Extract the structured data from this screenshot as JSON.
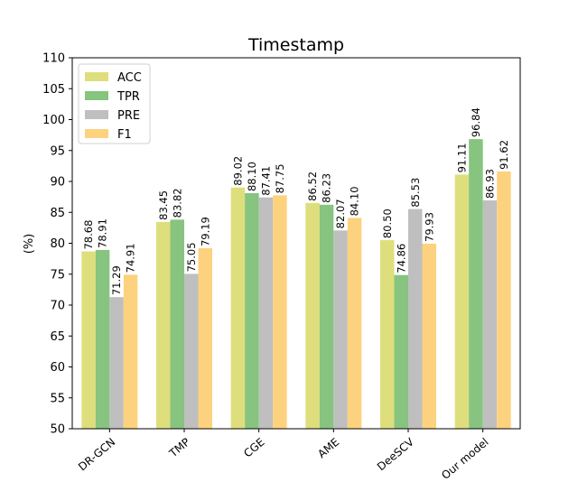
{
  "chart_data": {
    "type": "bar",
    "title": "Timestamp",
    "xlabel": "",
    "ylabel": "(%)",
    "ylim": [
      50,
      110
    ],
    "yticks": [
      50,
      55,
      60,
      65,
      70,
      75,
      80,
      85,
      90,
      95,
      100,
      105,
      110
    ],
    "categories": [
      "DR-GCN",
      "TMP",
      "CGE",
      "AME",
      "DeeSCV",
      "Our model"
    ],
    "series": [
      {
        "name": "ACC",
        "color": "#dede7c",
        "values": [
          78.68,
          83.45,
          89.02,
          86.52,
          80.5,
          91.11
        ],
        "labels": [
          "78.68",
          "83.45",
          "89.02",
          "86.52",
          "80.50",
          "91.11"
        ]
      },
      {
        "name": "TPR",
        "color": "#86c47f",
        "values": [
          78.91,
          83.82,
          88.1,
          86.23,
          74.86,
          96.84
        ],
        "labels": [
          "78.91",
          "83.82",
          "88.10",
          "86.23",
          "74.86",
          "96.84"
        ]
      },
      {
        "name": "PRE",
        "color": "#bfbfbf",
        "values": [
          71.29,
          75.05,
          87.41,
          82.07,
          85.53,
          86.93
        ],
        "labels": [
          "71.29",
          "75.05",
          "87.41",
          "82.07",
          "85.53",
          "86.93"
        ]
      },
      {
        "name": "F1",
        "color": "#fdd27e",
        "values": [
          74.91,
          79.19,
          87.75,
          84.1,
          79.93,
          91.62
        ],
        "labels": [
          "74.91",
          "79.19",
          "87.75",
          "84.10",
          "79.93",
          "91.62"
        ]
      }
    ],
    "legend": "upper-left",
    "grid": false
  }
}
